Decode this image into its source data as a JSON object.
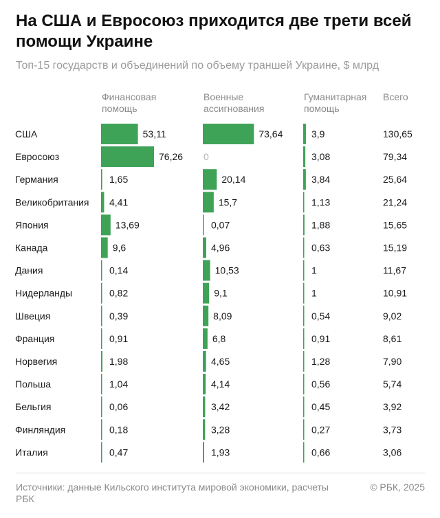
{
  "title": "На США и Евросоюз приходится две трети всей помощи Украине",
  "subtitle": "Топ-15 государств и объединений по объему траншей Украине, $ млрд",
  "colors": {
    "bar": "#3fa357",
    "baseline": "#3fa357",
    "text": "#1a1a1a",
    "muted": "#8a8a8a"
  },
  "chart_data": {
    "type": "table",
    "columns": [
      {
        "key": "financial",
        "header": "Финансовая\nпомощь"
      },
      {
        "key": "military",
        "header": "Военные\nассигнования"
      },
      {
        "key": "humanitarian",
        "header": "Гуманитарная\nпомощь"
      },
      {
        "key": "total",
        "header": "Всего"
      }
    ],
    "rows": [
      {
        "country": "США",
        "financial": "53,11",
        "military": "73,64",
        "humanitarian": "3,9",
        "total": "130,65"
      },
      {
        "country": "Евросоюз",
        "financial": "76,26",
        "military": "0",
        "humanitarian": "3,08",
        "total": "79,34"
      },
      {
        "country": "Германия",
        "financial": "1,65",
        "military": "20,14",
        "humanitarian": "3,84",
        "total": "25,64"
      },
      {
        "country": "Великобритания",
        "financial": "4,41",
        "military": "15,7",
        "humanitarian": "1,13",
        "total": "21,24"
      },
      {
        "country": "Япония",
        "financial": "13,69",
        "military": "0,07",
        "humanitarian": "1,88",
        "total": "15,65"
      },
      {
        "country": "Канада",
        "financial": "9,6",
        "military": "4,96",
        "humanitarian": "0,63",
        "total": "15,19"
      },
      {
        "country": "Дания",
        "financial": "0,14",
        "military": "10,53",
        "humanitarian": "1",
        "total": "11,67"
      },
      {
        "country": "Нидерланды",
        "financial": "0,82",
        "military": "9,1",
        "humanitarian": "1",
        "total": "10,91"
      },
      {
        "country": "Швеция",
        "financial": "0,39",
        "military": "8,09",
        "humanitarian": "0,54",
        "total": "9,02"
      },
      {
        "country": "Франция",
        "financial": "0,91",
        "military": "6,8",
        "humanitarian": "0,91",
        "total": "8,61"
      },
      {
        "country": "Норвегия",
        "financial": "1,98",
        "military": "4,65",
        "humanitarian": "1,28",
        "total": "7,90"
      },
      {
        "country": "Польша",
        "financial": "1,04",
        "military": "4,14",
        "humanitarian": "0,56",
        "total": "5,74"
      },
      {
        "country": "Бельгия",
        "financial": "0,06",
        "military": "3,42",
        "humanitarian": "0,45",
        "total": "3,92"
      },
      {
        "country": "Финляндия",
        "financial": "0,18",
        "military": "3,28",
        "humanitarian": "0,27",
        "total": "3,73"
      },
      {
        "country": "Италия",
        "financial": "0,47",
        "military": "1,93",
        "humanitarian": "0,66",
        "total": "3,06"
      }
    ]
  },
  "footer": {
    "source": "Источники: данные Кильского института мировой экономики, расчеты РБК",
    "copyright": "© РБК, 2025"
  }
}
